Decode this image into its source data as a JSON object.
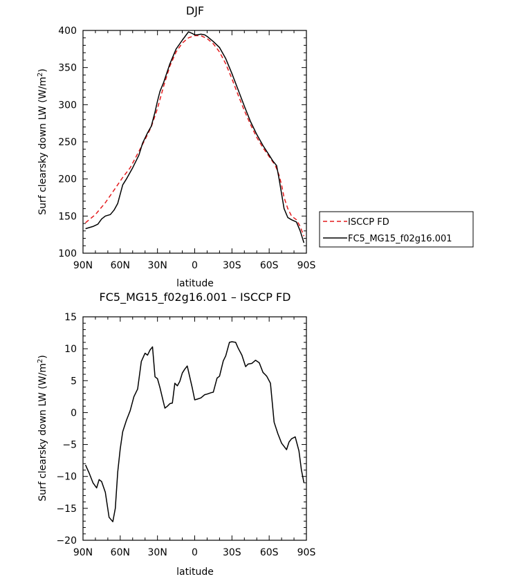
{
  "chart_data": [
    {
      "type": "line",
      "title": "DJF",
      "xlabel": "latitude",
      "ylabel": "Surf clearsky down LW (W/m",
      "ylabel_sup": "2",
      "ylabel_close": ")",
      "xlim": [
        90,
        -90
      ],
      "ylim": [
        100,
        400
      ],
      "xticks": [
        90,
        60,
        30,
        0,
        -30,
        -60,
        -90
      ],
      "xtick_labels": [
        "90N",
        "60N",
        "30N",
        "0",
        "30S",
        "60S",
        "90S"
      ],
      "yticks": [
        100,
        150,
        200,
        250,
        300,
        350,
        400
      ],
      "ytick_labels": [
        "100",
        "150",
        "200",
        "250",
        "300",
        "350",
        "400"
      ],
      "legend_position": "right, outside plot",
      "series": [
        {
          "name": "ISCCP FD",
          "color": "#e41a1c",
          "dash": true,
          "x": [
            88,
            80,
            72,
            65,
            58,
            52,
            46,
            40,
            35,
            30,
            25,
            20,
            15,
            10,
            5,
            0,
            -5,
            -10,
            -15,
            -20,
            -25,
            -30,
            -35,
            -40,
            -45,
            -50,
            -55,
            -60,
            -65,
            -68,
            -70,
            -72,
            -75,
            -78,
            -82,
            -85,
            -88
          ],
          "y": [
            141,
            152,
            168,
            185,
            202,
            215,
            234,
            253,
            270,
            295,
            325,
            352,
            371,
            383,
            390,
            393,
            393,
            389,
            382,
            371,
            355,
            335,
            313,
            292,
            273,
            256,
            242,
            230,
            218,
            205,
            192,
            175,
            160,
            150,
            145,
            136,
            123
          ]
        },
        {
          "name": "FC5_MG15_f02g16.001",
          "color": "#000000",
          "dash": false,
          "x": [
            88,
            82,
            78,
            75,
            72,
            68,
            65,
            62,
            58,
            55,
            50,
            45,
            42,
            38,
            35,
            32,
            30,
            28,
            25,
            20,
            15,
            10,
            5,
            2,
            0,
            -2,
            -5,
            -8,
            -10,
            -15,
            -20,
            -25,
            -30,
            -35,
            -40,
            -45,
            -50,
            -55,
            -60,
            -63,
            -66,
            -68,
            -70,
            -72,
            -75,
            -78,
            -82,
            -85,
            -88
          ],
          "y": [
            133,
            136,
            139,
            146,
            150,
            152,
            158,
            167,
            192,
            200,
            215,
            232,
            248,
            262,
            271,
            290,
            305,
            318,
            330,
            355,
            375,
            387,
            398,
            396,
            394,
            394,
            395,
            394,
            392,
            385,
            377,
            362,
            342,
            320,
            298,
            277,
            260,
            245,
            232,
            224,
            218,
            200,
            180,
            160,
            148,
            145,
            142,
            130,
            114
          ]
        }
      ]
    },
    {
      "type": "line",
      "title": "FC5_MG15_f02g16.001 – ISCCP FD",
      "xlabel": "latitude",
      "ylabel": "Surf clearsky down LW (W/m",
      "ylabel_sup": "2",
      "ylabel_close": ")",
      "xlim": [
        90,
        -90
      ],
      "ylim": [
        -20,
        15
      ],
      "xticks": [
        90,
        60,
        30,
        0,
        -30,
        -60,
        -90
      ],
      "xtick_labels": [
        "90N",
        "60N",
        "30N",
        "0",
        "30S",
        "60S",
        "90S"
      ],
      "yticks": [
        -20,
        -15,
        -10,
        -5,
        0,
        5,
        10,
        15
      ],
      "ytick_labels": [
        "−20",
        "−15",
        "−10",
        "−5",
        "0",
        "5",
        "10",
        "15"
      ],
      "series": [
        {
          "color": "#000000",
          "dash": false,
          "x": [
            88,
            85,
            82,
            79,
            77,
            75,
            72,
            69,
            66,
            64,
            62,
            60,
            58,
            55,
            52,
            49,
            46,
            43,
            40,
            38,
            36,
            34,
            32,
            30,
            28,
            26,
            24,
            22,
            20,
            18,
            16,
            14,
            12,
            10,
            8,
            6,
            4,
            2,
            0,
            -2,
            -5,
            -8,
            -10,
            -13,
            -15,
            -18,
            -20,
            -23,
            -25,
            -28,
            -30,
            -33,
            -35,
            -38,
            -41,
            -43,
            -46,
            -49,
            -52,
            -55,
            -58,
            -61,
            -64,
            -67,
            -70,
            -72,
            -74,
            -76,
            -78,
            -81,
            -84,
            -86,
            -88
          ],
          "y": [
            -8.2,
            -9.5,
            -11.0,
            -11.8,
            -10.5,
            -10.8,
            -12.5,
            -16.4,
            -17.1,
            -15.0,
            -9.3,
            -5.7,
            -3.0,
            -1.2,
            0.3,
            2.5,
            3.7,
            8.0,
            9.3,
            9.0,
            9.8,
            10.3,
            5.6,
            5.3,
            3.9,
            2.3,
            0.7,
            1.0,
            1.4,
            1.5,
            4.6,
            4.2,
            4.9,
            6.2,
            6.8,
            7.3,
            5.6,
            3.9,
            2.0,
            2.1,
            2.3,
            2.8,
            2.9,
            3.1,
            3.2,
            5.4,
            5.7,
            8.1,
            8.9,
            11.0,
            11.1,
            11.0,
            10.1,
            9.0,
            7.2,
            7.6,
            7.7,
            8.2,
            7.8,
            6.3,
            5.7,
            4.6,
            -1.5,
            -3.3,
            -4.8,
            -5.3,
            -5.8,
            -4.6,
            -4.1,
            -3.8,
            -6.0,
            -9.0,
            -11.0
          ]
        }
      ]
    }
  ]
}
